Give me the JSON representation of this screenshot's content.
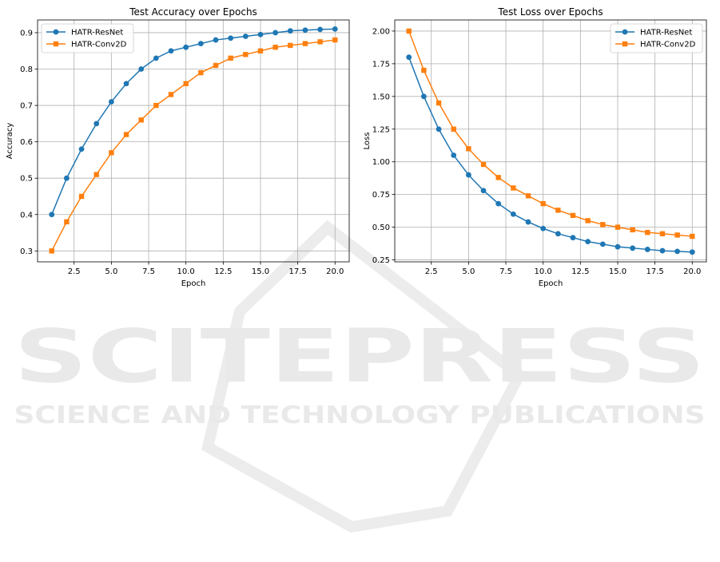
{
  "watermark": {
    "main": "SCITEPRESS",
    "sub": "SCIENCE AND TECHNOLOGY PUBLICATIONS"
  },
  "chart_data": [
    {
      "type": "line",
      "title": "Test Accuracy over Epochs",
      "xlabel": "Epoch",
      "ylabel": "Accuracy",
      "xlim": [
        0.05,
        20.95
      ],
      "ylim": [
        0.27,
        0.935
      ],
      "xticks": [
        2.5,
        5.0,
        7.5,
        10.0,
        12.5,
        15.0,
        17.5,
        20.0
      ],
      "xtick_labels": [
        "2.5",
        "5.0",
        "7.5",
        "10.0",
        "12.5",
        "15.0",
        "17.5",
        "20.0"
      ],
      "yticks": [
        0.3,
        0.4,
        0.5,
        0.6,
        0.7,
        0.8,
        0.9
      ],
      "ytick_labels": [
        "0.3",
        "0.4",
        "0.5",
        "0.6",
        "0.7",
        "0.8",
        "0.9"
      ],
      "grid": true,
      "legend_position": "top-left",
      "x": [
        1,
        2,
        3,
        4,
        5,
        6,
        7,
        8,
        9,
        10,
        11,
        12,
        13,
        14,
        15,
        16,
        17,
        18,
        19,
        20
      ],
      "series": [
        {
          "name": "HATR-ResNet",
          "color": "#1f77b4",
          "marker": "circle",
          "values": [
            0.4,
            0.5,
            0.58,
            0.65,
            0.71,
            0.76,
            0.8,
            0.83,
            0.85,
            0.86,
            0.87,
            0.88,
            0.885,
            0.89,
            0.895,
            0.9,
            0.905,
            0.907,
            0.909,
            0.91
          ]
        },
        {
          "name": "HATR-Conv2D",
          "color": "#ff7f0e",
          "marker": "square",
          "values": [
            0.3,
            0.38,
            0.45,
            0.51,
            0.57,
            0.62,
            0.66,
            0.7,
            0.73,
            0.76,
            0.79,
            0.81,
            0.83,
            0.84,
            0.85,
            0.86,
            0.865,
            0.87,
            0.875,
            0.88
          ]
        }
      ]
    },
    {
      "type": "line",
      "title": "Test Loss over Epochs",
      "xlabel": "Epoch",
      "ylabel": "Loss",
      "xlim": [
        0.05,
        20.95
      ],
      "ylim": [
        0.235,
        2.085
      ],
      "xticks": [
        2.5,
        5.0,
        7.5,
        10.0,
        12.5,
        15.0,
        17.5,
        20.0
      ],
      "xtick_labels": [
        "2.5",
        "5.0",
        "7.5",
        "10.0",
        "12.5",
        "15.0",
        "17.5",
        "20.0"
      ],
      "yticks": [
        0.25,
        0.5,
        0.75,
        1.0,
        1.25,
        1.5,
        1.75,
        2.0
      ],
      "ytick_labels": [
        "0.25",
        "0.50",
        "0.75",
        "1.00",
        "1.25",
        "1.50",
        "1.75",
        "2.00"
      ],
      "grid": true,
      "legend_position": "top-right",
      "x": [
        1,
        2,
        3,
        4,
        5,
        6,
        7,
        8,
        9,
        10,
        11,
        12,
        13,
        14,
        15,
        16,
        17,
        18,
        19,
        20
      ],
      "series": [
        {
          "name": "HATR-ResNet",
          "color": "#1f77b4",
          "marker": "circle",
          "values": [
            1.8,
            1.5,
            1.25,
            1.05,
            0.9,
            0.78,
            0.68,
            0.6,
            0.54,
            0.49,
            0.45,
            0.42,
            0.39,
            0.37,
            0.35,
            0.34,
            0.33,
            0.32,
            0.315,
            0.31
          ]
        },
        {
          "name": "HATR-Conv2D",
          "color": "#ff7f0e",
          "marker": "square",
          "values": [
            2.0,
            1.7,
            1.45,
            1.25,
            1.1,
            0.98,
            0.88,
            0.8,
            0.74,
            0.68,
            0.63,
            0.59,
            0.55,
            0.52,
            0.5,
            0.48,
            0.46,
            0.45,
            0.44,
            0.43
          ]
        }
      ]
    }
  ]
}
